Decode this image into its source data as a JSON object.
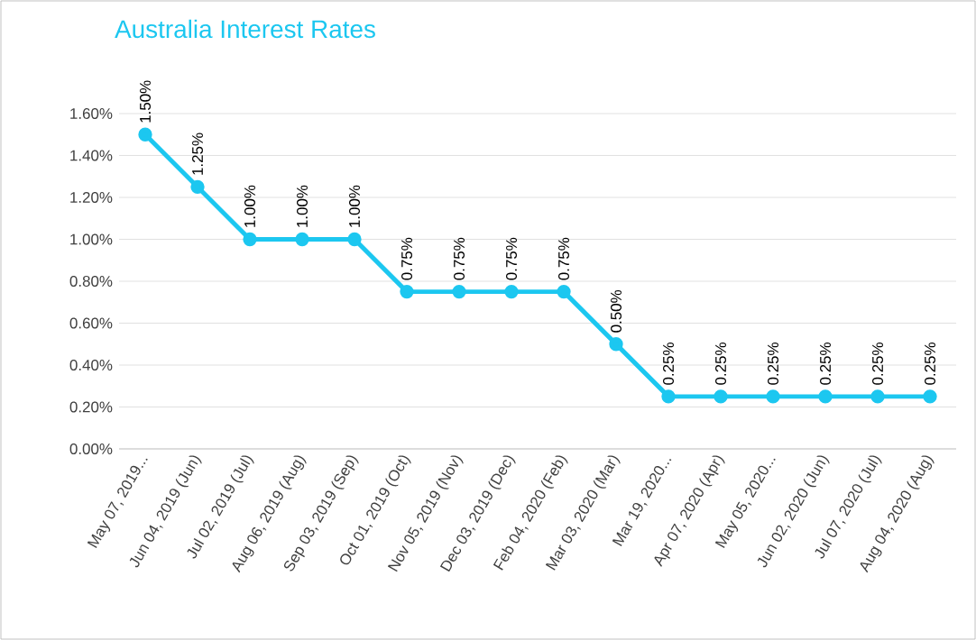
{
  "chart_data": {
    "type": "line",
    "title": "Australia Interest Rates",
    "categories": [
      "May 07, 2019...",
      "Jun 04, 2019 (Jun)",
      "Jul 02, 2019 (Jul)",
      "Aug 06, 2019 (Aug)",
      "Sep 03, 2019 (Sep)",
      "Oct 01, 2019 (Oct)",
      "Nov 05, 2019 (Nov)",
      "Dec 03, 2019 (Dec)",
      "Feb 04, 2020 (Feb)",
      "Mar 03, 2020 (Mar)",
      "Mar 19, 2020...",
      "Apr 07, 2020 (Apr)",
      "May 05, 2020...",
      "Jun 02, 2020 (Jun)",
      "Jul 07, 2020 (Jul)",
      "Aug 04, 2020 (Aug)"
    ],
    "values": [
      1.5,
      1.25,
      1.0,
      1.0,
      1.0,
      0.75,
      0.75,
      0.75,
      0.75,
      0.5,
      0.25,
      0.25,
      0.25,
      0.25,
      0.25,
      0.25
    ],
    "value_labels": [
      "1.50%",
      "1.25%",
      "1.00%",
      "1.00%",
      "1.00%",
      "0.75%",
      "0.75%",
      "0.75%",
      "0.75%",
      "0.50%",
      "0.25%",
      "0.25%",
      "0.25%",
      "0.25%",
      "0.25%",
      "0.25%"
    ],
    "color": "#1cc7f0",
    "ylim": [
      0,
      1.6
    ],
    "yticks": [
      {
        "value": 0,
        "label": "0.00%"
      },
      {
        "value": 0.2,
        "label": "0.20%"
      },
      {
        "value": 0.4,
        "label": "0.40%"
      },
      {
        "value": 0.6,
        "label": "0.60%"
      },
      {
        "value": 0.8,
        "label": "0.80%"
      },
      {
        "value": 1.0,
        "label": "1.00%"
      },
      {
        "value": 1.2,
        "label": "1.20%"
      },
      {
        "value": 1.4,
        "label": "1.40%"
      },
      {
        "value": 1.6,
        "label": "1.60%"
      }
    ],
    "grid": "y",
    "marker": "circle",
    "line_style": "solid"
  }
}
